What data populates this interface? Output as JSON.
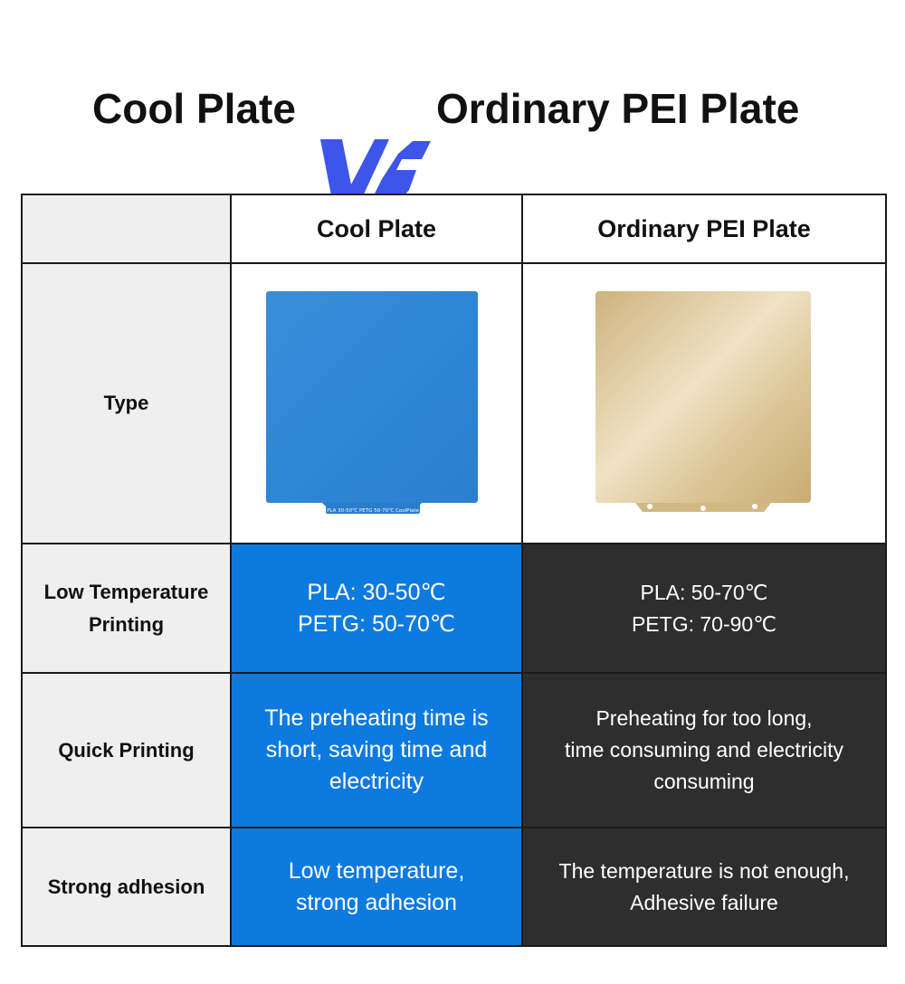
{
  "title": {
    "left": "Cool Plate",
    "vs": "VS",
    "right": "Ordinary PEI Plate"
  },
  "colors": {
    "cool_blue": "#0d7ae0",
    "pei_dark": "#2e2e2e",
    "label_bg": "#efefef",
    "vs_accent": "#3d55e8"
  },
  "table": {
    "headers": [
      "",
      "Cool Plate",
      "Ordinary PEI Plate"
    ],
    "rows": [
      {
        "label": "Type",
        "cool_image": "blue-cool-plate-image",
        "cool_plate_imprint": "PLA 30-50℃ PETG 50-70℃ CoolPlate",
        "pei_image": "gold-pei-plate-image"
      },
      {
        "label": "Low Temperature Printing",
        "cool": [
          "PLA: 30-50℃",
          "PETG: 50-70℃"
        ],
        "pei": [
          "PLA: 50-70℃",
          "PETG: 70-90℃"
        ]
      },
      {
        "label": "Quick Printing",
        "cool": [
          "The preheating time is",
          "short, saving time and",
          "electricity"
        ],
        "pei": [
          "Preheating for too long,",
          "time consuming and electricity",
          "consuming"
        ]
      },
      {
        "label": "Strong adhesion",
        "cool": [
          "Low temperature,",
          "strong adhesion"
        ],
        "pei": [
          "The temperature is not enough,",
          "Adhesive failure"
        ]
      }
    ]
  }
}
